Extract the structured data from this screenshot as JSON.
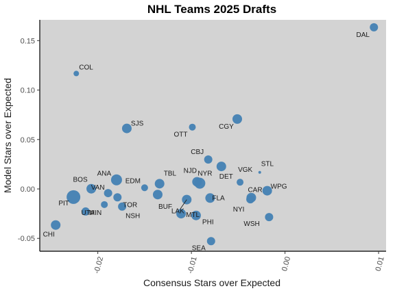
{
  "chart_data": {
    "type": "scatter",
    "title": "NHL Teams 2025 Drafts",
    "xlabel": "Consensus Stars over Expected",
    "ylabel": "Model Stars over Expected",
    "xlim": [
      -0.0262,
      0.0108
    ],
    "ylim": [
      -0.063,
      0.171
    ],
    "xticks": [
      -0.02,
      -0.01,
      0.0,
      0.01
    ],
    "xtick_labels": [
      "-0.02",
      "-0.01",
      "0.00",
      "0.01"
    ],
    "yticks": [
      -0.05,
      0.0,
      0.05,
      0.1,
      0.15
    ],
    "ytick_labels": [
      "-0.05",
      "0.00",
      "0.05",
      "0.10",
      "0.15"
    ],
    "grid": false,
    "background": "#d3d3d3",
    "point_color": "#4682b4",
    "points": [
      {
        "label": "DAL",
        "x": 0.0095,
        "y": 0.1635,
        "size": 6
      },
      {
        "label": "COL",
        "x": -0.0223,
        "y": 0.1167,
        "size": 4
      },
      {
        "label": "SJS",
        "x": -0.0169,
        "y": 0.0612,
        "size": 7
      },
      {
        "label": "CGY",
        "x": -0.0051,
        "y": 0.0707,
        "size": 7
      },
      {
        "label": "OTT",
        "x": -0.0099,
        "y": 0.0625,
        "size": 5
      },
      {
        "label": "CBJ",
        "x": -0.0082,
        "y": 0.0298,
        "size": 6
      },
      {
        "label": "STL",
        "x": -0.0027,
        "y": 0.0168,
        "size": 2
      },
      {
        "label": "ANA",
        "x": -0.018,
        "y": 0.0092,
        "size": 8
      },
      {
        "label": "EDM",
        "x": -0.015,
        "y": 0.0012,
        "size": 5
      },
      {
        "label": "TBL",
        "x": -0.0134,
        "y": 0.0053,
        "size": 7
      },
      {
        "label": "NJD",
        "x": -0.0094,
        "y": 0.0072,
        "size": 7
      },
      {
        "label": "DET",
        "x": -0.0068,
        "y": 0.0228,
        "size": 7
      },
      {
        "label": "VGK",
        "x": -0.0048,
        "y": 0.0068,
        "size": 5
      },
      {
        "label": "WPG",
        "x": -0.0019,
        "y": -0.0018,
        "size": 7
      },
      {
        "label": "BOS",
        "x": -0.0207,
        "y": 0.0002,
        "size": 7
      },
      {
        "label": "VAN",
        "x": -0.0189,
        "y": -0.0042,
        "size": 6
      },
      {
        "label": "PIT",
        "x": -0.0226,
        "y": -0.0082,
        "size": 10
      },
      {
        "label": "TOR",
        "x": -0.0179,
        "y": -0.0085,
        "size": 6
      },
      {
        "label": "BUF",
        "x": -0.0136,
        "y": -0.0057,
        "size": 7
      },
      {
        "label": "NYR",
        "x": -0.0091,
        "y": 0.0058,
        "size": 8
      },
      {
        "label": "FLA",
        "x": -0.008,
        "y": -0.0092,
        "size": 7
      },
      {
        "label": "CAR",
        "x": -0.0036,
        "y": -0.0088,
        "size": 7
      },
      {
        "label": "NYI",
        "x": -0.0037,
        "y": -0.0105,
        "size": 6
      },
      {
        "label": "MIN",
        "x": -0.0213,
        "y": -0.0228,
        "size": 6
      },
      {
        "label": "NSH",
        "x": -0.0174,
        "y": -0.0178,
        "size": 6
      },
      {
        "label": "UTA",
        "x": -0.0193,
        "y": -0.0158,
        "size": 5
      },
      {
        "label": "LAK",
        "x": -0.0105,
        "y": -0.0108,
        "size": 7
      },
      {
        "label": "MTL",
        "x": -0.0111,
        "y": -0.025,
        "size": 7
      },
      {
        "label": "PHI",
        "x": -0.0095,
        "y": -0.0268,
        "size": 7
      },
      {
        "label": "WSH",
        "x": -0.0017,
        "y": -0.0285,
        "size": 6
      },
      {
        "label": "CHI",
        "x": -0.0245,
        "y": -0.0365,
        "size": 7
      },
      {
        "label": "SEA",
        "x": -0.0079,
        "y": -0.0528,
        "size": 6
      }
    ]
  }
}
